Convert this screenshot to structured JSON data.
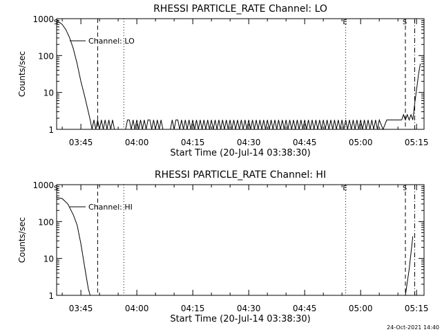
{
  "footer": {
    "timestamp": "24-Oct-2021 14:40"
  },
  "chart_data": [
    {
      "type": "line",
      "title": "RHESSI PARTICLE_RATE Channel: LO",
      "xlabel": "Start Time (20-Jul-14 03:38:30)",
      "ylabel": "Counts/sec",
      "yscale": "log",
      "ylim": [
        1,
        1000
      ],
      "xlim": [
        "03:38:30",
        "05:17:00"
      ],
      "x_ticks": [
        "03:45",
        "04:00",
        "04:15",
        "04:30",
        "04:45",
        "05:00",
        "05:15"
      ],
      "y_ticks": [
        "1",
        "10",
        "100",
        "1000"
      ],
      "legend": "Channel: LO",
      "series": [
        {
          "name": "Channel: LO",
          "x": [
            "03:38:30",
            "03:40:00",
            "03:41:00",
            "03:42:00",
            "03:43:00",
            "03:44:00",
            "03:45:00",
            "03:46:00",
            "03:47:00",
            "03:47:30",
            "03:48:00",
            "03:48:30",
            "03:49:00",
            "03:49:30",
            "03:50:00",
            "03:50:30",
            "03:51:00",
            "03:51:30",
            "03:52:00",
            "03:52:30",
            "03:53:00",
            "03:53:30",
            "03:54:00",
            "03:55:00",
            "03:56:00",
            "03:57:00",
            "03:57:30",
            "03:58:00",
            "03:58:30",
            "03:59:00",
            "03:59:30",
            "04:00:00",
            "04:00:30",
            "04:01:00",
            "04:01:30",
            "04:02:00",
            "04:02:30",
            "04:03:00",
            "04:03:30",
            "04:04:00",
            "04:04:30",
            "04:05:00",
            "04:05:30",
            "04:06:00",
            "04:06:30",
            "04:07:00",
            "04:08:00",
            "04:09:00",
            "04:09:30",
            "04:10:00",
            "04:10:30",
            "04:11:00",
            "04:11:30",
            "04:12:00",
            "04:12:30",
            "04:13:00",
            "04:13:30",
            "04:14:00",
            "04:14:30",
            "04:15:00",
            "04:15:30",
            "04:16:00",
            "04:16:30",
            "04:17:00",
            "04:17:30",
            "04:18:00",
            "04:18:30",
            "04:19:00",
            "04:19:30",
            "04:20:00",
            "04:20:30",
            "04:21:00",
            "04:21:30",
            "04:22:00",
            "04:22:30",
            "04:23:00",
            "04:23:30",
            "04:24:00",
            "04:24:30",
            "04:25:00",
            "04:25:30",
            "04:26:00",
            "04:26:30",
            "04:27:00",
            "04:27:30",
            "04:28:00",
            "04:28:30",
            "04:29:00",
            "04:29:30",
            "04:30:00",
            "04:30:30",
            "04:31:00",
            "04:31:30",
            "04:32:00",
            "04:32:30",
            "04:33:00",
            "04:33:30",
            "04:34:00",
            "04:34:30",
            "04:35:00",
            "04:35:30",
            "04:36:00",
            "04:36:30",
            "04:37:00",
            "04:37:30",
            "04:38:00",
            "04:38:30",
            "04:39:00",
            "04:39:30",
            "04:40:00",
            "04:40:30",
            "04:41:00",
            "04:41:30",
            "04:42:00",
            "04:42:30",
            "04:43:00",
            "04:43:30",
            "04:44:00",
            "04:44:30",
            "04:45:00",
            "04:45:30",
            "04:46:00",
            "04:46:30",
            "04:47:00",
            "04:47:30",
            "04:48:00",
            "04:48:30",
            "04:49:00",
            "04:49:30",
            "04:50:00",
            "04:50:30",
            "04:51:00",
            "04:51:30",
            "04:52:00",
            "04:52:30",
            "04:53:00",
            "04:53:30",
            "04:54:00",
            "04:54:30",
            "04:55:00",
            "04:55:30",
            "04:56:00",
            "04:56:30",
            "04:57:00",
            "04:57:30",
            "04:58:00",
            "04:58:30",
            "04:59:00",
            "04:59:30",
            "05:00:00",
            "05:00:30",
            "05:01:00",
            "05:01:30",
            "05:02:00",
            "05:02:30",
            "05:03:00",
            "05:03:30",
            "05:04:00",
            "05:04:30",
            "05:05:00",
            "05:06:00",
            "05:07:00",
            "05:08:00",
            "05:09:00",
            "05:10:00",
            "05:10:30",
            "05:11:00",
            "05:11:30",
            "05:12:00",
            "05:12:30",
            "05:13:00",
            "05:13:30",
            "05:14:00",
            "05:14:30",
            "05:15:00",
            "05:15:30",
            "05:16:00"
          ],
          "y": [
            900,
            700,
            500,
            300,
            150,
            60,
            20,
            8,
            3,
            1.8,
            1,
            1.8,
            1,
            1.8,
            1,
            1.8,
            1,
            1.8,
            1,
            1.8,
            1,
            1.8,
            1,
            1,
            1,
            1,
            1.8,
            1.8,
            1,
            1.8,
            1,
            1.8,
            1,
            1.8,
            1,
            1.8,
            1,
            1.8,
            1.8,
            1,
            1.8,
            1,
            1.8,
            1,
            1.8,
            1,
            1,
            1,
            1.8,
            1,
            1.8,
            1.8,
            1,
            1.8,
            1,
            1.8,
            1,
            1.8,
            1,
            1.8,
            1,
            1.8,
            1,
            1.8,
            1,
            1.8,
            1,
            1.8,
            1,
            1.8,
            1,
            1.8,
            1,
            1.8,
            1,
            1.8,
            1,
            1.8,
            1,
            1.8,
            1,
            1.8,
            1,
            1.8,
            1,
            1.8,
            1,
            1.8,
            1,
            1.8,
            1,
            1.8,
            1,
            1.8,
            1,
            1.8,
            1,
            1.8,
            1,
            1.8,
            1,
            1.8,
            1,
            1.8,
            1,
            1.8,
            1,
            1.8,
            1,
            1.8,
            1,
            1.8,
            1,
            1.8,
            1,
            1.8,
            1,
            1.8,
            1,
            1.8,
            1,
            1.8,
            1,
            1.8,
            1,
            1.8,
            1,
            1.8,
            1,
            1.8,
            1,
            1.8,
            1,
            1.8,
            1,
            1.8,
            1,
            1.8,
            1,
            1.8,
            1,
            1.8,
            1,
            1.8,
            1,
            1.8,
            1,
            1.8,
            1,
            1.8,
            1,
            1.8,
            1,
            1.8,
            1,
            1.8,
            1,
            1.8,
            1,
            1.8,
            1,
            1.8,
            1.8,
            1.8,
            1.8,
            1.8,
            1.8,
            2.5,
            1.8,
            2.5,
            1.8,
            2.5,
            1.8,
            5,
            12,
            30,
            60
          ]
        }
      ],
      "markers": [
        {
          "label": "S",
          "time": "03:38:30",
          "style": "solid"
        },
        {
          "label": "",
          "time": "03:49:30",
          "style": "dashed"
        },
        {
          "label": "",
          "time": "03:56:30",
          "style": "dotted"
        },
        {
          "label": "E",
          "time": "04:56:00",
          "style": "dotted"
        },
        {
          "label": "S",
          "time": "05:12:00",
          "style": "dashed"
        },
        {
          "label": "",
          "time": "05:14:30",
          "style": "dashdot"
        }
      ]
    },
    {
      "type": "line",
      "title": "RHESSI PARTICLE_RATE Channel: HI",
      "xlabel": "Start Time (20-Jul-14 03:38:30)",
      "ylabel": "Counts/sec",
      "yscale": "log",
      "ylim": [
        1,
        1000
      ],
      "xlim": [
        "03:38:30",
        "05:17:00"
      ],
      "x_ticks": [
        "03:45",
        "04:00",
        "04:15",
        "04:30",
        "04:45",
        "05:00",
        "05:15"
      ],
      "y_ticks": [
        "1",
        "10",
        "100",
        "1000"
      ],
      "legend": "Channel: HI",
      "series": [
        {
          "name": "Channel: HI",
          "x": [
            "03:38:30",
            "03:40:00",
            "03:41:30",
            "03:43:00",
            "03:44:00",
            "03:45:00",
            "03:46:00",
            "03:47:00",
            "03:47:30",
            "05:12:00",
            "05:13:00",
            "05:14:00"
          ],
          "y": [
            450,
            420,
            300,
            150,
            80,
            25,
            6,
            1.5,
            1,
            1,
            5,
            40
          ]
        }
      ],
      "markers": [
        {
          "label": "S",
          "time": "03:38:30",
          "style": "solid"
        },
        {
          "label": "",
          "time": "03:49:30",
          "style": "dashed"
        },
        {
          "label": "",
          "time": "03:56:30",
          "style": "dotted"
        },
        {
          "label": "E",
          "time": "04:56:00",
          "style": "dotted"
        },
        {
          "label": "S",
          "time": "05:12:00",
          "style": "dashed"
        },
        {
          "label": "",
          "time": "05:14:30",
          "style": "dashdot"
        }
      ]
    }
  ]
}
